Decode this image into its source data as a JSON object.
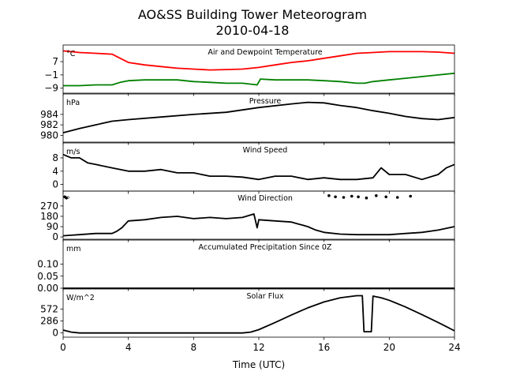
{
  "chart_data": {
    "type": "line",
    "title": "AO&SS Building Tower Meteorogram",
    "subtitle": "2010-04-18",
    "xlabel": "Time (UTC)",
    "xlim": [
      0,
      24
    ],
    "xticks": [
      "0",
      "4",
      "8",
      "12",
      "16",
      "20",
      "24"
    ],
    "panels": [
      {
        "id": "temperature",
        "label": "Air and Dewpoint Temperature",
        "unit": "°C",
        "ylim": [
          -12,
          17
        ],
        "yticks": [
          {
            "v": 7,
            "t": "7"
          },
          {
            "v": -1,
            "t": "−1"
          },
          {
            "v": -9,
            "t": "−9"
          }
        ],
        "series": [
          {
            "color": "#ff0000",
            "line": true,
            "x": [
              0,
              1,
              2,
              3,
              3.5,
              4,
              5,
              6,
              7,
              8,
              9,
              10,
              11,
              12,
              13,
              14,
              15,
              16,
              17,
              18,
              19,
              20,
              21,
              22,
              23,
              24
            ],
            "y": [
              13.5,
              12.5,
              12,
              11.5,
              9,
              6.5,
              5,
              4,
              3,
              2.5,
              2,
              2.2,
              2.5,
              3.5,
              5,
              6.5,
              7.5,
              9,
              10.5,
              12,
              12.5,
              13,
              13,
              13,
              12.7,
              12
            ]
          },
          {
            "color": "#008000",
            "line": true,
            "x": [
              0,
              1,
              2,
              3,
              3.5,
              4,
              5,
              6,
              7,
              8,
              9,
              10,
              11,
              11.9,
              12.1,
              13,
              14,
              15,
              16,
              17,
              18,
              18.5,
              19,
              20,
              21,
              22,
              23,
              24
            ],
            "y": [
              -7.5,
              -7.5,
              -7,
              -7,
              -5.5,
              -4.5,
              -4,
              -4,
              -4,
              -5,
              -5.5,
              -6,
              -6,
              -7,
              -3.5,
              -4,
              -4,
              -4,
              -4.5,
              -5,
              -6,
              -6,
              -5,
              -4,
              -3,
              -2,
              -1,
              0
            ]
          }
        ]
      },
      {
        "id": "pressure",
        "label": "Pressure",
        "unit": "hPa",
        "ylim": [
          978.7,
          987.9
        ],
        "yticks": [
          {
            "v": 984,
            "t": "984"
          },
          {
            "v": 982,
            "t": "982"
          },
          {
            "v": 980,
            "t": "980"
          }
        ],
        "series": [
          {
            "color": "#000000",
            "line": true,
            "x": [
              0,
              1,
              2,
              3,
              4,
              6,
              8,
              10,
              12,
              14,
              15,
              16,
              17,
              18,
              19,
              20,
              21,
              22,
              23,
              24
            ],
            "y": [
              980.5,
              981.3,
              982,
              982.7,
              983.0,
              983.5,
              984.0,
              984.4,
              985.3,
              986.0,
              986.3,
              986.2,
              985.7,
              985.3,
              984.7,
              984.2,
              983.6,
              983.2,
              983.0,
              983.4
            ]
          }
        ]
      },
      {
        "id": "wind-speed",
        "label": "Wind Speed",
        "unit": "m/s",
        "ylim": [
          -2,
          12.5
        ],
        "yticks": [
          {
            "v": 8,
            "t": "8"
          },
          {
            "v": 4,
            "t": "4"
          },
          {
            "v": 0,
            "t": "0"
          }
        ],
        "series": [
          {
            "color": "#000000",
            "line": true,
            "x": [
              0,
              0.5,
              1,
              1.5,
              2,
              3,
              4,
              5,
              6,
              7,
              8,
              9,
              10,
              11,
              12,
              13,
              14,
              15,
              16,
              17,
              18,
              19,
              19.5,
              20,
              21,
              22,
              23,
              23.5,
              24
            ],
            "y": [
              9,
              8,
              8,
              6.5,
              6,
              5,
              4,
              4,
              4.5,
              3.5,
              3.5,
              2.5,
              2.5,
              2.2,
              1.5,
              2.5,
              2.5,
              1.5,
              2,
              1.5,
              1.5,
              2,
              5,
              3,
              3,
              1.5,
              3,
              5,
              6
            ]
          }
        ]
      },
      {
        "id": "wind-direction",
        "label": "Wind Direction",
        "unit": "°",
        "ylim": [
          -20,
          400
        ],
        "yticks": [
          {
            "v": 270,
            "t": "270"
          },
          {
            "v": 180,
            "t": "180"
          },
          {
            "v": 90,
            "t": "90"
          },
          {
            "v": 0,
            "t": "0"
          }
        ],
        "series": [
          {
            "color": "#000000",
            "line": true,
            "x": [
              0,
              0.5,
              1,
              2,
              3,
              3.3,
              3.6,
              4,
              5,
              6,
              7,
              8,
              9,
              10,
              11,
              11.7,
              11.9,
              12,
              13,
              14,
              15,
              15.5,
              16,
              17,
              18,
              19,
              20,
              21,
              22,
              23,
              24
            ],
            "y": [
              10,
              15,
              20,
              30,
              30,
              50,
              80,
              140,
              150,
              170,
              180,
              160,
              170,
              160,
              170,
              200,
              80,
              150,
              140,
              130,
              90,
              60,
              40,
              25,
              20,
              20,
              20,
              30,
              40,
              60,
              90
            ]
          },
          {
            "color": "#000000",
            "line": false,
            "x": [
              0.1,
              0.2,
              16.3,
              16.7,
              17.2,
              17.7,
              18.1,
              18.6,
              19.2,
              19.8,
              20.5,
              21.3
            ],
            "y": [
              350,
              340,
              360,
              350,
              345,
              355,
              350,
              340,
              360,
              350,
              345,
              355
            ]
          }
        ]
      },
      {
        "id": "precipitation",
        "label": "Accumulated Precipitation Since 0Z",
        "unit": "mm",
        "ylim": [
          0,
          0.2
        ],
        "yticks": [
          {
            "v": 0.1,
            "t": "0.10"
          },
          {
            "v": 0.05,
            "t": "0.05"
          },
          {
            "v": 0.0,
            "t": "0.00"
          }
        ],
        "series": [
          {
            "color": "#000000",
            "line": true,
            "x": [
              0,
              24
            ],
            "y": [
              0,
              0
            ]
          }
        ]
      },
      {
        "id": "solar-flux",
        "label": "Solar Flux",
        "unit": "W/m^2",
        "ylim": [
          -100,
          1050
        ],
        "yticks": [
          {
            "v": 572,
            "t": "572"
          },
          {
            "v": 286,
            "t": "286"
          },
          {
            "v": 0,
            "t": "0"
          }
        ],
        "series": [
          {
            "color": "#000000",
            "line": true,
            "x": [
              0,
              0.5,
              1,
              11,
              11.5,
              12,
              13,
              14,
              15,
              16,
              17,
              18,
              18.35,
              18.45,
              18.9,
              19.0,
              19.5,
              20,
              21,
              22,
              23,
              23.5,
              24
            ],
            "y": [
              70,
              20,
              0,
              0,
              20,
              80,
              250,
              430,
              600,
              740,
              840,
              890,
              890,
              30,
              30,
              880,
              840,
              780,
              620,
              440,
              250,
              150,
              50
            ]
          }
        ]
      }
    ]
  }
}
